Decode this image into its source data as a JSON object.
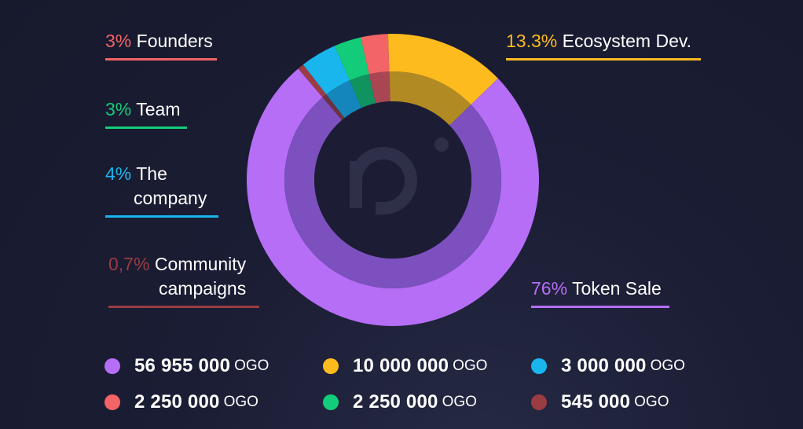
{
  "chart_data": {
    "type": "donut",
    "slices": [
      {
        "key": "token_sale",
        "pct_label": "76%",
        "name": "Token Sale",
        "value": 76,
        "color": "#b56ef5",
        "inner_color": "#7c50bf"
      },
      {
        "key": "community",
        "pct_label": "0,7%",
        "name": "Community campaigns",
        "name_lines": [
          "Community",
          "campaigns"
        ],
        "value": 0.7,
        "color": "#9b3b42",
        "inner_color": "#6c3240"
      },
      {
        "key": "company",
        "pct_label": "4%",
        "name": "The company",
        "name_lines": [
          "The",
          "company"
        ],
        "value": 4,
        "color": "#19b6ee",
        "inner_color": "#1586bb"
      },
      {
        "key": "team",
        "pct_label": "3%",
        "name": "Team",
        "value": 3,
        "color": "#13cc7a",
        "inner_color": "#119360"
      },
      {
        "key": "founders",
        "pct_label": "3%",
        "name": "Founders",
        "value": 3,
        "color": "#f26466",
        "inner_color": "#a94654"
      },
      {
        "key": "ecosystem",
        "pct_label": "13.3%",
        "name": "Ecosystem Dev.",
        "value": 13.3,
        "color": "#fdbb1d",
        "inner_color": "#b18a24"
      }
    ]
  },
  "legend": [
    {
      "amount": "56 955 000",
      "unit": "OGO",
      "color": "#b56ef5"
    },
    {
      "amount": "10 000 000",
      "unit": "OGO",
      "color": "#fdbb1d"
    },
    {
      "amount": "3 000 000",
      "unit": "OGO",
      "color": "#19b6ee"
    },
    {
      "amount": "2 250 000",
      "unit": "OGO",
      "color": "#f26466"
    },
    {
      "amount": "2 250 000",
      "unit": "OGO",
      "color": "#13cc7a"
    },
    {
      "amount": "545 000",
      "unit": "OGO",
      "color": "#9b3b42"
    }
  ]
}
